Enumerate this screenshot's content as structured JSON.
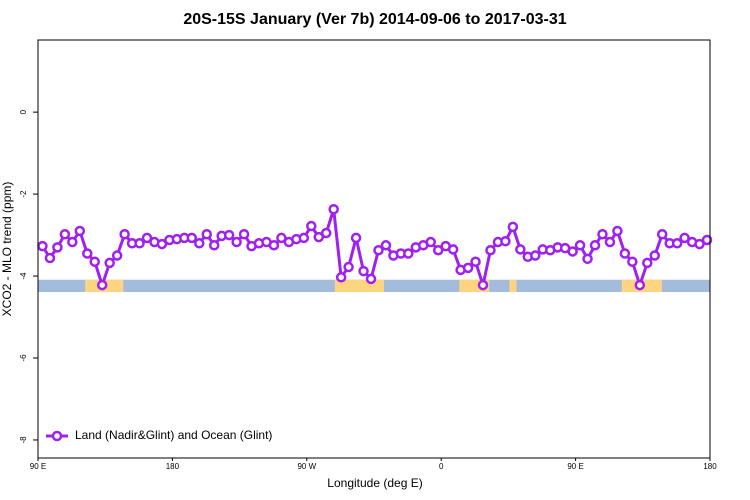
{
  "chart_data": {
    "type": "line",
    "title": "20S-15S January (Ver 7b)   2014-09-06 to 2017-03-31",
    "x_label": "Longitude (deg E)",
    "y_label": "XCO2 - MLO trend (ppm)",
    "xlim": [
      90,
      540
    ],
    "xticks": [
      {
        "value": 90,
        "label": "90 E"
      },
      180,
      {
        "value": 270,
        "label": "90 W"
      },
      {
        "value": 360,
        "label": "0"
      },
      {
        "value": 450,
        "label": "90 E"
      },
      {
        "value": 540,
        "label": "180"
      }
    ],
    "ylim": [
      -8.44,
      1.76
    ],
    "yticks": [
      -8,
      -6,
      -4,
      -2,
      0
    ],
    "legend": "bottom-left",
    "series": [
      {
        "name": "Land (Nadir&Glint) and Ocean (Glint)",
        "color": "#a020f0",
        "x": [
          93,
          98,
          103,
          108,
          113,
          118,
          123,
          128,
          133,
          138,
          143,
          148,
          153,
          158,
          163,
          168,
          173,
          178,
          183,
          188,
          193,
          198,
          203,
          208,
          213,
          218,
          223,
          228,
          233,
          238,
          243,
          248,
          253,
          258,
          263,
          268,
          273,
          278,
          283,
          288,
          293,
          298,
          303,
          308,
          313,
          318,
          323,
          328,
          333,
          338,
          343,
          348,
          353,
          358,
          363,
          368,
          373,
          378,
          383,
          388,
          393,
          398,
          403,
          408,
          413,
          418,
          423,
          428,
          433,
          438,
          443,
          448,
          453,
          458,
          463,
          468,
          473,
          478,
          483,
          488,
          493,
          498,
          503,
          508,
          513,
          518,
          523,
          528,
          533,
          538
        ],
        "values": [
          -3.27,
          -3.56,
          -3.3,
          -2.98,
          -3.17,
          -2.9,
          -3.45,
          -3.65,
          -4.22,
          -3.68,
          -3.5,
          -2.98,
          -3.2,
          -3.2,
          -3.07,
          -3.17,
          -3.22,
          -3.12,
          -3.1,
          -3.07,
          -3.07,
          -3.2,
          -2.98,
          -3.25,
          -3.02,
          -3.0,
          -3.17,
          -2.98,
          -3.27,
          -3.2,
          -3.17,
          -3.25,
          -3.07,
          -3.17,
          -3.1,
          -3.07,
          -2.78,
          -3.05,
          -2.95,
          -2.37,
          -4.03,
          -3.78,
          -3.07,
          -3.88,
          -4.07,
          -3.37,
          -3.25,
          -3.5,
          -3.45,
          -3.45,
          -3.3,
          -3.25,
          -3.17,
          -3.37,
          -3.27,
          -3.35,
          -3.85,
          -3.8,
          -3.65,
          -4.22,
          -3.37,
          -3.17,
          -3.15,
          -2.8,
          -3.35,
          -3.53,
          -3.5,
          -3.35,
          -3.37,
          -3.3,
          -3.32,
          -3.4,
          -3.25,
          -3.58,
          -3.25,
          -2.98,
          -3.17,
          -2.9,
          -3.45,
          -3.65,
          -4.22,
          -3.68,
          -3.5,
          -2.98,
          -3.2,
          -3.2,
          -3.07,
          -3.17,
          -3.22,
          -3.12
        ]
      }
    ],
    "surface_band": {
      "y": -4.24,
      "height": 0.3,
      "ocean_color": "#a4bcdc",
      "land_color": "#ffd480",
      "land": [
        [
          121.6,
          147.1
        ],
        [
          288.8,
          321.7
        ],
        [
          372.1,
          392.2
        ],
        [
          405.7,
          410.4
        ],
        [
          480.9,
          507.8
        ]
      ]
    }
  }
}
